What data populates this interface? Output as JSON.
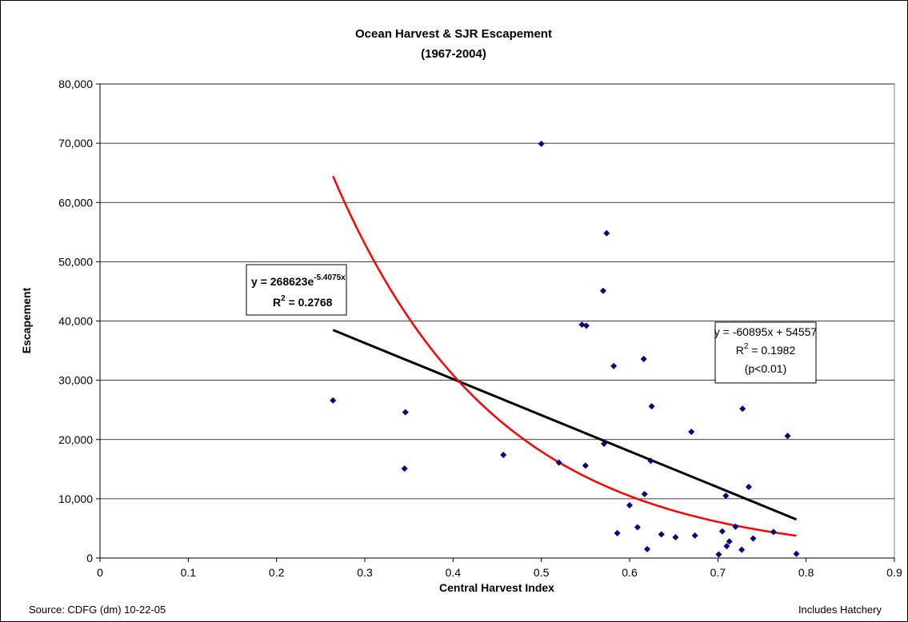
{
  "chart_data": {
    "type": "scatter",
    "title": "Ocean Harvest & SJR Escapement",
    "subtitle": "(1967-2004)",
    "xlabel": "Central Harvest Index",
    "ylabel": "Escapement",
    "xlim": [
      0,
      0.9
    ],
    "ylim": [
      0,
      80000
    ],
    "x_ticks": [
      0,
      0.1,
      0.2,
      0.3,
      0.4,
      0.5,
      0.6,
      0.7,
      0.8,
      0.9
    ],
    "x_tick_labels": [
      "0",
      "0.1",
      "0.2",
      "0.3",
      "0.4",
      "0.5",
      "0.6",
      "0.7",
      "0.8",
      "0.9"
    ],
    "y_ticks": [
      0,
      10000,
      20000,
      30000,
      40000,
      50000,
      60000,
      70000,
      80000
    ],
    "y_tick_labels": [
      "0",
      "10,000",
      "20,000",
      "30,000",
      "40,000",
      "50,000",
      "60,000",
      "70,000",
      "80,000"
    ],
    "grid": "horizontal",
    "points": [
      {
        "x": 0.264,
        "y": 26600
      },
      {
        "x": 0.346,
        "y": 24600
      },
      {
        "x": 0.345,
        "y": 15100
      },
      {
        "x": 0.457,
        "y": 17400
      },
      {
        "x": 0.5,
        "y": 69900
      },
      {
        "x": 0.52,
        "y": 16100
      },
      {
        "x": 0.546,
        "y": 39400
      },
      {
        "x": 0.551,
        "y": 39200
      },
      {
        "x": 0.55,
        "y": 15600
      },
      {
        "x": 0.57,
        "y": 45100
      },
      {
        "x": 0.574,
        "y": 54800
      },
      {
        "x": 0.571,
        "y": 19300
      },
      {
        "x": 0.582,
        "y": 32400
      },
      {
        "x": 0.586,
        "y": 4200
      },
      {
        "x": 0.6,
        "y": 8900
      },
      {
        "x": 0.609,
        "y": 5200
      },
      {
        "x": 0.616,
        "y": 33600
      },
      {
        "x": 0.617,
        "y": 10800
      },
      {
        "x": 0.62,
        "y": 1500
      },
      {
        "x": 0.625,
        "y": 25600
      },
      {
        "x": 0.624,
        "y": 16400
      },
      {
        "x": 0.636,
        "y": 4000
      },
      {
        "x": 0.652,
        "y": 3500
      },
      {
        "x": 0.67,
        "y": 21300
      },
      {
        "x": 0.674,
        "y": 3800
      },
      {
        "x": 0.701,
        "y": 600
      },
      {
        "x": 0.705,
        "y": 4500
      },
      {
        "x": 0.709,
        "y": 10500
      },
      {
        "x": 0.71,
        "y": 2000
      },
      {
        "x": 0.713,
        "y": 2800
      },
      {
        "x": 0.72,
        "y": 5300
      },
      {
        "x": 0.727,
        "y": 1400
      },
      {
        "x": 0.728,
        "y": 25200
      },
      {
        "x": 0.735,
        "y": 12000
      },
      {
        "x": 0.74,
        "y": 3300
      },
      {
        "x": 0.763,
        "y": 4400
      },
      {
        "x": 0.779,
        "y": 20600
      },
      {
        "x": 0.789,
        "y": 700
      }
    ],
    "trendlines": [
      {
        "kind": "linear",
        "slope": -60895,
        "intercept": 54557,
        "x_range": [
          0.264,
          0.789
        ],
        "color": "#000000"
      },
      {
        "kind": "exponential",
        "a": 268623,
        "b": -5.4075,
        "x_range": [
          0.264,
          0.789
        ],
        "color": "#ff0000"
      }
    ],
    "annotations": {
      "exp": {
        "eq_prefix": "y = 268623e",
        "eq_exp": "-5.4075x",
        "r2_prefix": "R",
        "r2_sup": "2",
        "r2_value": " = 0.2768"
      },
      "linear": {
        "eq": "y = -60895x + 54557",
        "r2_prefix": "R",
        "r2_sup": "2",
        "r2_value": " = 0.1982",
        "p": "(p<0.01)"
      }
    },
    "point_color": "#000080"
  },
  "footer": {
    "source": "Source: CDFG (dm) 10-22-05",
    "note": "Includes Hatchery"
  }
}
